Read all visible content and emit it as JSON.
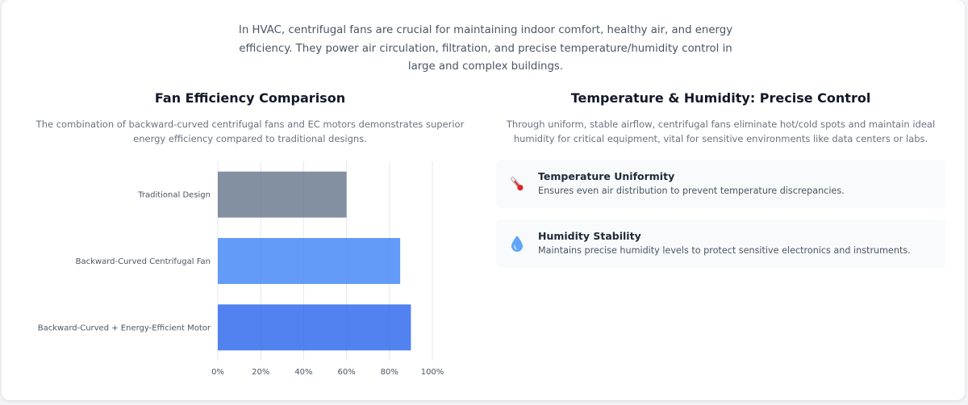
{
  "intro": "In HVAC, centrifugal fans are crucial for maintaining indoor comfort, healthy air, and energy efficiency. They power air circulation, filtration, and precise temperature/humidity control in large and complex buildings.",
  "efficiency_section": {
    "title": "Fan Efficiency Comparison",
    "description": "The combination of backward-curved centrifugal fans and EC motors demonstrates superior energy efficiency compared to traditional designs."
  },
  "control_section": {
    "title": "Temperature & Humidity: Precise Control",
    "description": "Through uniform, stable airflow, centrifugal fans eliminate hot/cold spots and maintain ideal humidity for critical equipment, vital for sensitive environments like data centers or labs.",
    "features": [
      {
        "icon": "thermometer-icon",
        "title": "Temperature Uniformity",
        "description": "Ensures even air distribution to prevent temperature discrepancies."
      },
      {
        "icon": "water-drop-icon",
        "title": "Humidity Stability",
        "description": "Maintains precise humidity levels to protect sensitive electronics and instruments."
      }
    ]
  },
  "chart_data": {
    "type": "bar",
    "orientation": "horizontal",
    "categories": [
      "Traditional Design",
      "Backward-Curved Centrifugal Fan",
      "Backward-Curved + Energy-Efficient Motor"
    ],
    "values": [
      60,
      85,
      90
    ],
    "colors": [
      "#64748b",
      "#3b82f6",
      "#2563eb"
    ],
    "xlim": [
      0,
      100
    ],
    "xticks": [
      0,
      20,
      40,
      60,
      80,
      100
    ],
    "xtick_suffix": "%",
    "grid": "vertical"
  }
}
